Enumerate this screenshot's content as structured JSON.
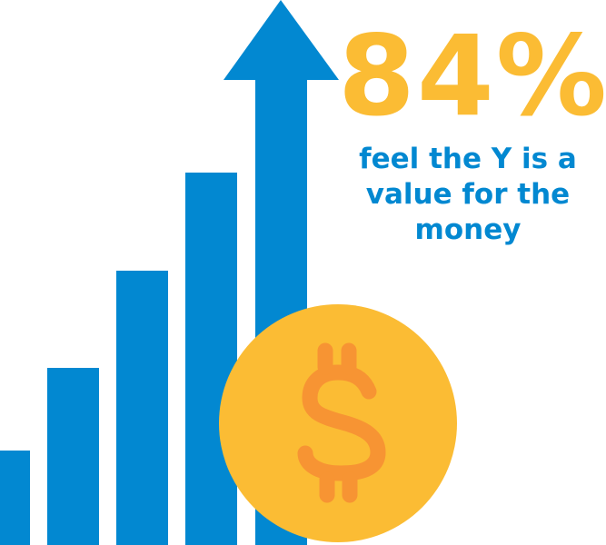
{
  "headline": {
    "value": "84%"
  },
  "caption": {
    "lines": [
      "feel the Y is a",
      "value for the",
      "money"
    ]
  },
  "icons": {
    "chart": "rising-bar-chart-arrow-icon",
    "coin": "dollar-coin-icon"
  },
  "colors": {
    "blue": "#0288d1",
    "yellow": "#fbbc34",
    "orange": "#f79433"
  }
}
